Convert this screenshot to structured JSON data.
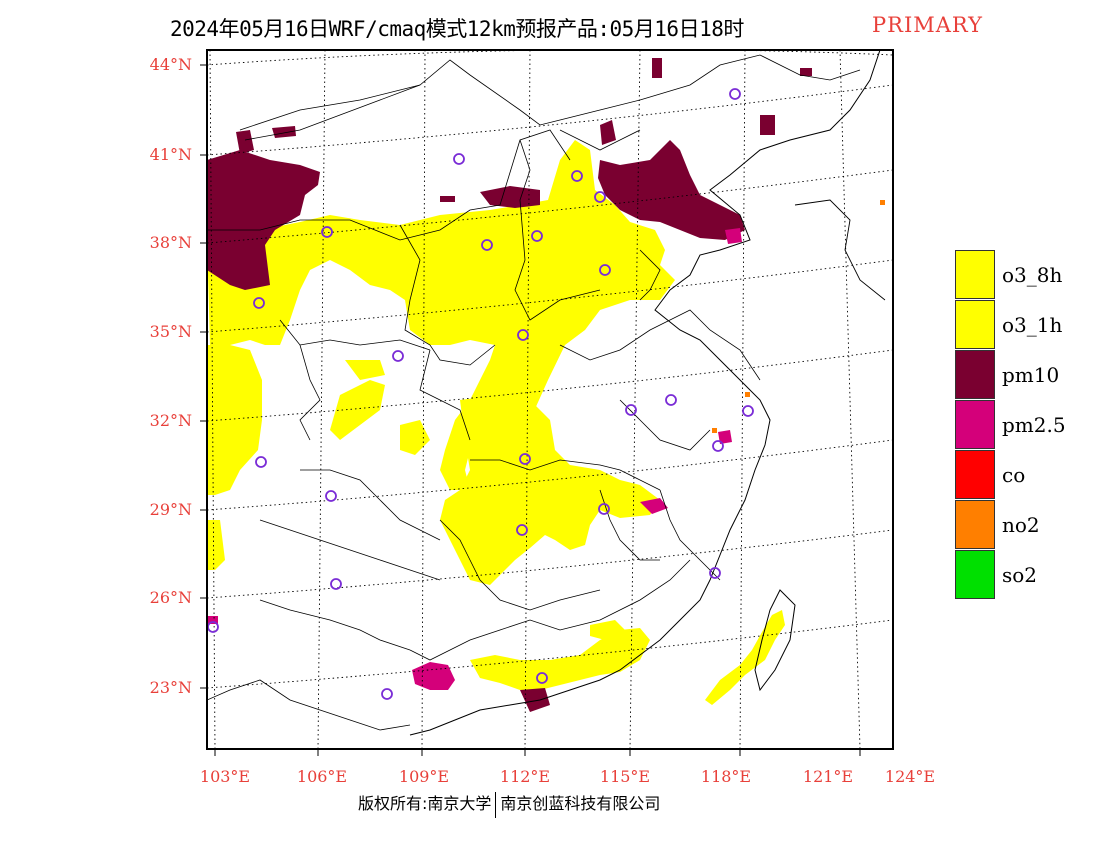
{
  "header": {
    "title": "2024年05月16日WRF/cmaq模式12km预报产品:05月16日18时",
    "mode": "PRIMARY"
  },
  "map": {
    "lat_labels": [
      "44°N",
      "41°N",
      "38°N",
      "35°N",
      "32°N",
      "29°N",
      "26°N",
      "23°N"
    ],
    "lon_labels": [
      "103°E",
      "106°E",
      "109°E",
      "112°E",
      "115°E",
      "118°E",
      "121°E",
      "124°E"
    ],
    "station_marker": "circle-marker"
  },
  "legend": {
    "items": [
      {
        "label": "o3_8h",
        "color": "#ffff00"
      },
      {
        "label": "o3_1h",
        "color": "#ffff00"
      },
      {
        "label": "pm10",
        "color": "#7a0030"
      },
      {
        "label": "pm2.5",
        "color": "#d4007a"
      },
      {
        "label": "co",
        "color": "#ff0000"
      },
      {
        "label": "no2",
        "color": "#ff7f00"
      },
      {
        "label": "so2",
        "color": "#00e000"
      }
    ]
  },
  "footer": {
    "copyright": "版权所有:南京大学",
    "company": "南京创蓝科技有限公司"
  }
}
